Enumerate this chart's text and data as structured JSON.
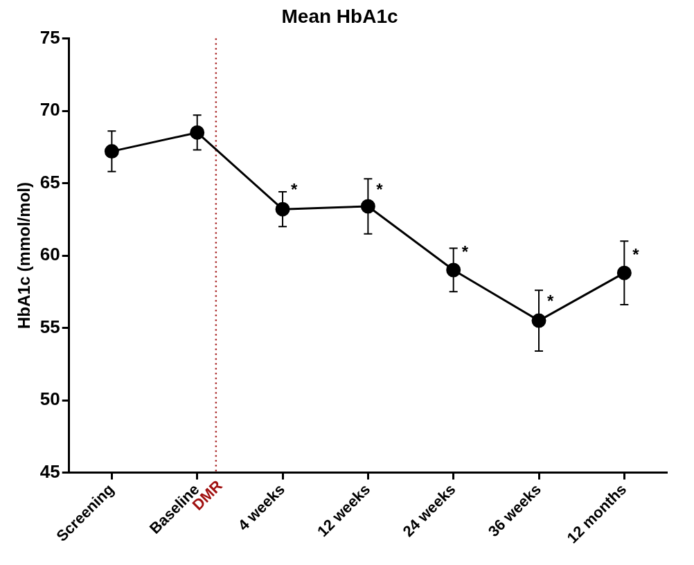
{
  "chart_data": {
    "type": "line",
    "title": "Mean HbA1c",
    "ylabel": "HbA1c (mmol/mol)",
    "categories": [
      "Screening",
      "Baseline",
      "4 weeks",
      "12 weeks",
      "24 weeks",
      "36 weeks",
      "12 months"
    ],
    "series": [
      {
        "color": "#000000",
        "values": [
          67.2,
          68.5,
          63.2,
          63.4,
          59.0,
          55.5,
          58.8
        ],
        "errors": [
          1.4,
          1.2,
          1.2,
          1.9,
          1.5,
          2.1,
          2.2
        ]
      }
    ],
    "ylim": [
      45,
      75
    ],
    "yticks": [
      45,
      50,
      55,
      60,
      65,
      70,
      75
    ],
    "grid": false,
    "legend": false,
    "marker": "circle",
    "line_style": "solid",
    "ref_lines": [
      {
        "axis": "x",
        "value": "Baseline",
        "label": "DMR",
        "color": "#a01010",
        "line_style": "dotted"
      }
    ],
    "annotations": [
      {
        "text": "*",
        "x": "4 weeks",
        "y": 64.5
      },
      {
        "text": "*",
        "x": "12 weeks",
        "y": 64.5
      },
      {
        "text": "*",
        "x": "24 weeks",
        "y": 60.2
      },
      {
        "text": "*",
        "x": "36 weeks",
        "y": 56.8
      },
      {
        "text": "*",
        "x": "12 months",
        "y": 60.0
      }
    ]
  }
}
